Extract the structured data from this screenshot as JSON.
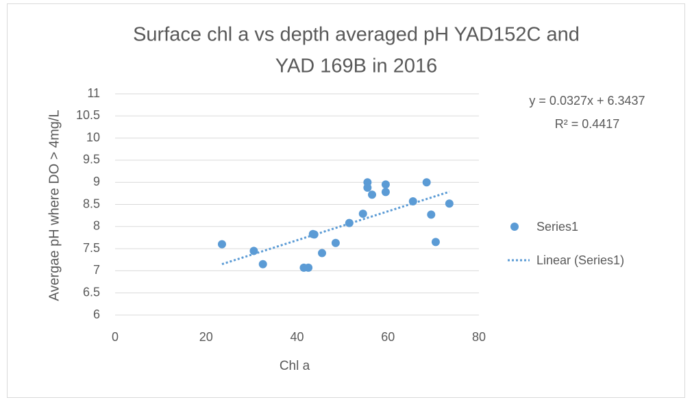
{
  "chart_data": {
    "type": "scatter",
    "title": [
      "Surface chl a vs depth averaged pH YAD152C and",
      "YAD 169B in 2016"
    ],
    "xlabel": "Chl a",
    "ylabel": "Avergae pH where DO > 4mg/L",
    "series": [
      {
        "name": "Series1",
        "color": "#5b9bd5",
        "x": [
          23.5,
          30.5,
          32.5,
          41.5,
          42.5,
          43.5,
          43.8,
          45.5,
          48.5,
          51.5,
          54.5,
          55.5,
          55.5,
          56.5,
          59.5,
          59.5,
          65.5,
          68.5,
          69.5,
          70.5,
          73.5
        ],
        "values": [
          7.6,
          7.45,
          7.15,
          7.07,
          7.07,
          7.83,
          7.82,
          7.4,
          7.63,
          8.08,
          8.29,
          9.0,
          8.88,
          8.72,
          8.95,
          8.78,
          8.57,
          9.0,
          8.27,
          7.65,
          8.52
        ]
      }
    ],
    "trendline": {
      "name": "Linear (Series1)",
      "equation": "y = 0.0327x  + 6.3437",
      "r2": "R² = 0.4417"
    },
    "xlim": [
      0,
      80
    ],
    "xticks": [
      0,
      20,
      40,
      60,
      80
    ],
    "ylim": [
      6,
      11
    ],
    "yticks": [
      6,
      6.5,
      7,
      7.5,
      8,
      8.5,
      9,
      9.5,
      10,
      10.5,
      11
    ],
    "grid": true,
    "legend": "right"
  }
}
